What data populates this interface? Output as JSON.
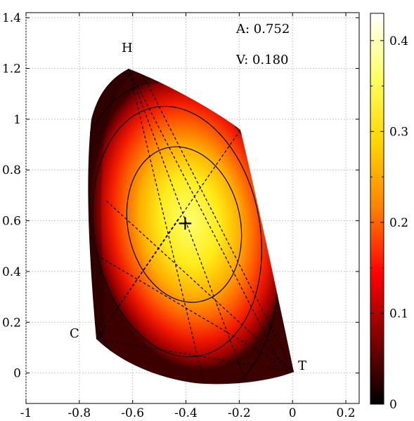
{
  "chart_data": {
    "type": "heatmap",
    "title": "",
    "xlabel": "",
    "ylabel": "",
    "xlim": [
      -1.0,
      0.25
    ],
    "ylim": [
      -0.12,
      1.42
    ],
    "grid": true,
    "x_ticks": [
      "-1",
      "-0.8",
      "-0.6",
      "-0.4",
      "-0.2",
      "0",
      "0.2"
    ],
    "x_tick_values": [
      -1.0,
      -0.8,
      -0.6,
      -0.4,
      -0.2,
      0.0,
      0.2
    ],
    "y_ticks": [
      "0",
      "0.2",
      "0.4",
      "0.6",
      "0.8",
      "1",
      "1.2",
      "1.4"
    ],
    "y_tick_values": [
      0.0,
      0.2,
      0.4,
      0.6,
      0.8,
      1.0,
      1.2,
      1.4
    ],
    "colorbar": {
      "range": [
        0,
        0.43
      ],
      "ticks": [
        "0",
        "0.1",
        "0.2",
        "0.3",
        "0.4"
      ],
      "tick_values": [
        0,
        0.1,
        0.2,
        0.3,
        0.4
      ],
      "colormap": "hot",
      "colors": [
        "#000000",
        "#800000",
        "#ff0000",
        "#ff8000",
        "#ffd400",
        "#ffff60",
        "#ffffff"
      ]
    },
    "annotations": {
      "A": "A: 0.752",
      "V": "V: 0.180"
    },
    "vertices": [
      {
        "label": "H",
        "x": -0.63,
        "y": 1.18
      },
      {
        "label": "C",
        "x": -0.76,
        "y": 0.13
      },
      {
        "label": "T",
        "x": 0.0,
        "y": 0.0
      }
    ],
    "maximum_marker": {
      "symbol": "+",
      "x": -0.4,
      "y": 0.59
    },
    "contour_levels": [
      0.1,
      0.2,
      0.3
    ]
  }
}
